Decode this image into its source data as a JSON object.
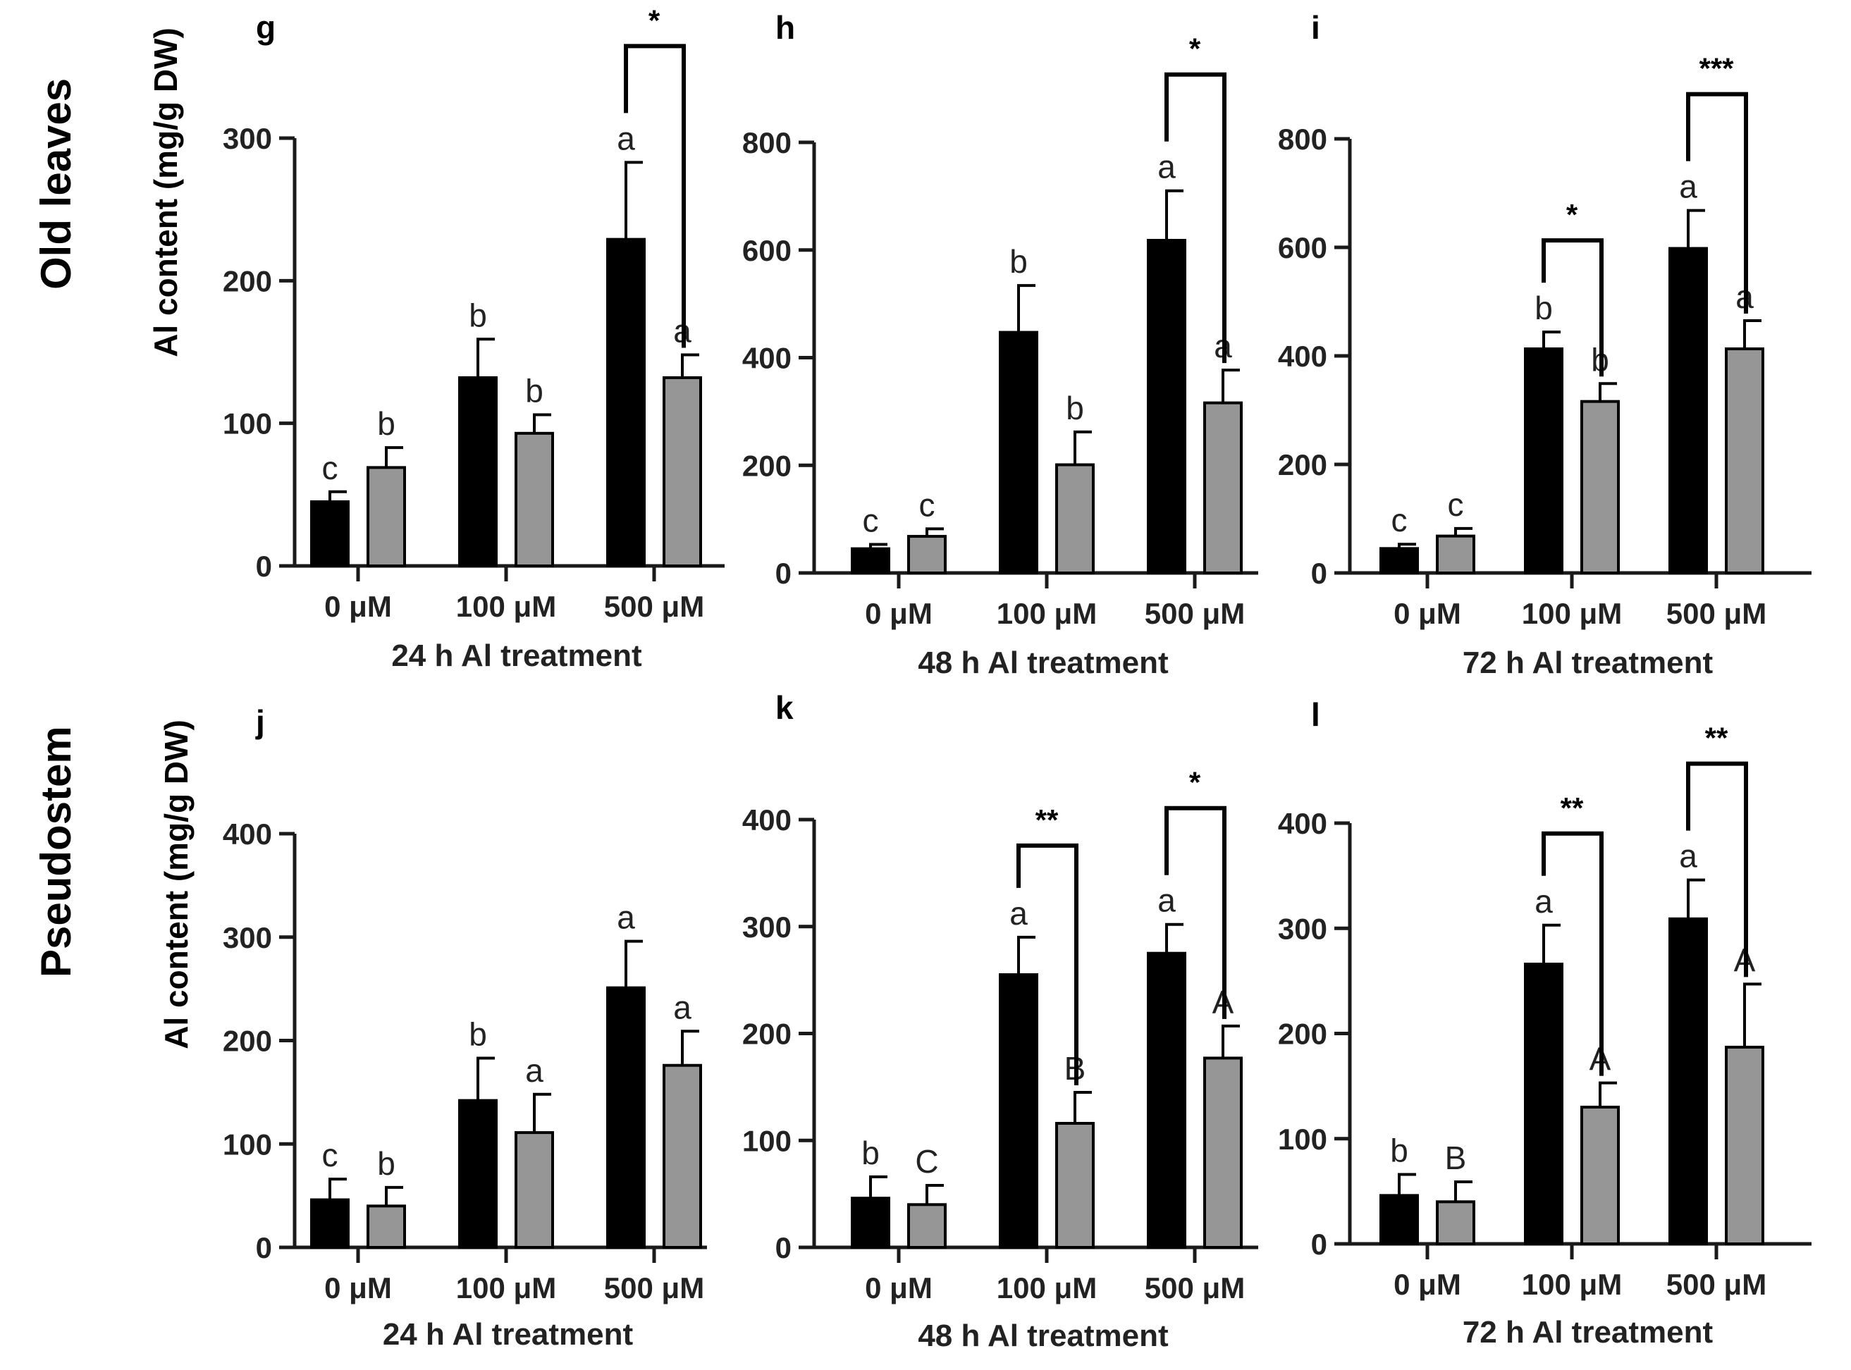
{
  "rows": [
    {
      "label": "Old leaves",
      "ylabel": "Al content (mg/g DW)"
    },
    {
      "label": "Pseudostem",
      "ylabel": "Al content (mg/g DW)"
    }
  ],
  "colors": {
    "series1": "#000000",
    "series2": "#969696",
    "axis": "#1a1a1a"
  },
  "chart_data": [
    {
      "type": "bar",
      "panel": "g",
      "title": "",
      "xlabel": "24 h Al treatment",
      "ylabel": "Al content (mg/g DW)",
      "categories": [
        "0 μM",
        "100 μM",
        "500 μM"
      ],
      "ylim": [
        0,
        300
      ],
      "yticks": [
        0,
        100,
        200,
        300
      ],
      "series": [
        {
          "name": "series 1",
          "color": "#000000",
          "values": [
            45,
            132,
            229
          ],
          "errors": [
            7,
            27,
            54
          ],
          "letters": [
            "c",
            "b",
            "a"
          ]
        },
        {
          "name": "series 2",
          "color": "#969696",
          "values": [
            69,
            93,
            132
          ],
          "errors": [
            14,
            13,
            16
          ],
          "letters": [
            "b",
            "b",
            "a"
          ]
        }
      ],
      "significance": [
        {
          "category": 2,
          "label": "*"
        }
      ]
    },
    {
      "type": "bar",
      "panel": "h",
      "title": "",
      "xlabel": "48 h Al treatment",
      "ylabel": "",
      "categories": [
        "0 μM",
        "100 μM",
        "500 μM"
      ],
      "ylim": [
        0,
        800
      ],
      "yticks": [
        0,
        200,
        400,
        600,
        800
      ],
      "series": [
        {
          "name": "series 1",
          "color": "#000000",
          "values": [
            45,
            447,
            618
          ],
          "errors": [
            8,
            87,
            92
          ],
          "letters": [
            "c",
            "b",
            "a"
          ]
        },
        {
          "name": "series 2",
          "color": "#969696",
          "values": [
            68,
            201,
            316
          ],
          "errors": [
            14,
            61,
            61
          ],
          "letters": [
            "c",
            "b",
            "a"
          ]
        }
      ],
      "significance": [
        {
          "category": 2,
          "label": "*"
        }
      ]
    },
    {
      "type": "bar",
      "panel": "i",
      "title": "",
      "xlabel": "72 h Al treatment",
      "ylabel": "",
      "categories": [
        "0 μM",
        "100 μM",
        "500 μM"
      ],
      "ylim": [
        0,
        800
      ],
      "yticks": [
        0,
        200,
        400,
        600,
        800
      ],
      "series": [
        {
          "name": "series 1",
          "color": "#000000",
          "values": [
            45,
            413,
            598
          ],
          "errors": [
            8,
            31,
            70
          ],
          "letters": [
            "c",
            "b",
            "a"
          ]
        },
        {
          "name": "series 2",
          "color": "#969696",
          "values": [
            68,
            316,
            413
          ],
          "errors": [
            14,
            33,
            52
          ],
          "letters": [
            "c",
            "b",
            "a"
          ]
        }
      ],
      "significance": [
        {
          "category": 1,
          "label": "*"
        },
        {
          "category": 2,
          "label": "***"
        }
      ]
    },
    {
      "type": "bar",
      "panel": "j",
      "title": "",
      "xlabel": "24 h Al treatment",
      "ylabel": "Al content (mg/g DW)",
      "categories": [
        "0 μM",
        "100 μM",
        "500 μM"
      ],
      "ylim": [
        0,
        400
      ],
      "yticks": [
        0,
        100,
        200,
        300,
        400
      ],
      "series": [
        {
          "name": "series 1",
          "color": "#000000",
          "values": [
            46,
            142,
            251
          ],
          "errors": [
            20,
            41,
            45
          ],
          "letters": [
            "c",
            "b",
            "a"
          ]
        },
        {
          "name": "series 2",
          "color": "#969696",
          "values": [
            40,
            111,
            176
          ],
          "errors": [
            18,
            37,
            33
          ],
          "letters": [
            "b",
            "a",
            "a"
          ]
        }
      ],
      "significance": []
    },
    {
      "type": "bar",
      "panel": "k",
      "title": "",
      "xlabel": "48 h Al treatment",
      "ylabel": "",
      "categories": [
        "0 μM",
        "100 μM",
        "500 μM"
      ],
      "ylim": [
        0,
        400
      ],
      "yticks": [
        0,
        100,
        200,
        300,
        400
      ],
      "series": [
        {
          "name": "series 1",
          "color": "#000000",
          "values": [
            46,
            255,
            275
          ],
          "errors": [
            20,
            35,
            27
          ],
          "letters": [
            "b",
            "a",
            "a"
          ]
        },
        {
          "name": "series 2",
          "color": "#969696",
          "values": [
            40,
            116,
            177
          ],
          "errors": [
            18,
            29,
            30
          ],
          "letters": [
            "C",
            "B",
            "A"
          ]
        }
      ],
      "significance": [
        {
          "category": 1,
          "label": "**"
        },
        {
          "category": 2,
          "label": "*"
        }
      ]
    },
    {
      "type": "bar",
      "panel": "l",
      "title": "",
      "xlabel": "72 h Al treatment",
      "ylabel": "",
      "categories": [
        "0 μM",
        "100 μM",
        "500 μM"
      ],
      "ylim": [
        0,
        400
      ],
      "yticks": [
        0,
        100,
        200,
        300,
        400
      ],
      "series": [
        {
          "name": "series 1",
          "color": "#000000",
          "values": [
            46,
            266,
            309
          ],
          "errors": [
            20,
            37,
            37
          ],
          "letters": [
            "b",
            "a",
            "a"
          ]
        },
        {
          "name": "series 2",
          "color": "#969696",
          "values": [
            40,
            130,
            187
          ],
          "errors": [
            19,
            23,
            60
          ],
          "letters": [
            "B",
            "A",
            "A"
          ]
        }
      ],
      "significance": [
        {
          "category": 1,
          "label": "**"
        },
        {
          "category": 2,
          "label": "**"
        }
      ]
    }
  ]
}
